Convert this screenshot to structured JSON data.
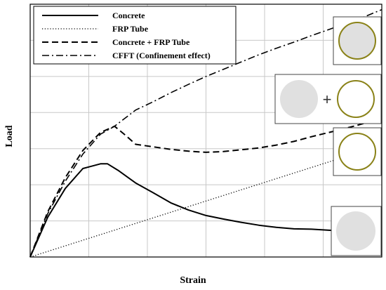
{
  "chart_data": {
    "type": "line",
    "title": "",
    "xlabel": "Strain",
    "ylabel": "Load",
    "xlim": [
      0,
      10
    ],
    "ylim": [
      0,
      7
    ],
    "grid": true,
    "legend_position": "top-left",
    "series": [
      {
        "name": "Concrete",
        "style": "solid",
        "x": [
          0,
          0.5,
          1.0,
          1.5,
          2.0,
          2.2,
          2.5,
          3.0,
          3.5,
          4.0,
          4.5,
          5.0,
          5.5,
          6.0,
          6.5,
          7.0,
          7.5,
          8.0,
          8.5,
          9.0,
          9.5,
          10.0
        ],
        "y": [
          0,
          1.1,
          1.9,
          2.45,
          2.58,
          2.58,
          2.4,
          2.05,
          1.78,
          1.5,
          1.3,
          1.15,
          1.05,
          0.96,
          0.88,
          0.82,
          0.78,
          0.77,
          0.74,
          0.72,
          0.7,
          0.7
        ]
      },
      {
        "name": "FRP Tube",
        "style": "dotted",
        "x": [
          0,
          10
        ],
        "y": [
          0,
          3.1
        ]
      },
      {
        "name": "Concrete + FRP Tube",
        "style": "dashed",
        "x": [
          0,
          0.5,
          1.0,
          1.5,
          2.0,
          2.4,
          2.7,
          3.0,
          3.5,
          4.0,
          4.5,
          5.0,
          5.5,
          6.0,
          6.5,
          7.0,
          7.5,
          8.0,
          8.5,
          9.0,
          9.5,
          10.0
        ],
        "y": [
          0,
          1.25,
          2.2,
          2.95,
          3.45,
          3.62,
          3.38,
          3.12,
          3.05,
          2.98,
          2.93,
          2.9,
          2.92,
          2.97,
          3.02,
          3.1,
          3.2,
          3.33,
          3.45,
          3.57,
          3.7,
          3.85
        ]
      },
      {
        "name": "CFFT (Confinement effect)",
        "style": "dashdot",
        "x": [
          0,
          0.5,
          1.0,
          1.5,
          2.0,
          2.4,
          3.0,
          3.5,
          4.0,
          4.5,
          5.0,
          5.5,
          6.0,
          6.5,
          7.0,
          7.5,
          8.0,
          8.5,
          9.0,
          9.5,
          10.0
        ],
        "y": [
          0,
          1.2,
          2.1,
          2.85,
          3.4,
          3.62,
          4.07,
          4.3,
          4.55,
          4.78,
          5.0,
          5.2,
          5.4,
          5.6,
          5.78,
          5.95,
          6.13,
          6.3,
          6.48,
          6.65,
          6.85
        ]
      }
    ]
  },
  "insets": [
    {
      "name": "cfft-inset",
      "description_icons": [
        "filled-circle",
        "ring"
      ],
      "fill": true,
      "ring": true
    },
    {
      "name": "concrete-plus-frp-inset",
      "plus_symbol": "+",
      "fill": true,
      "ring": true
    },
    {
      "name": "frp-tube-inset",
      "fill": false,
      "ring": true
    },
    {
      "name": "concrete-inset",
      "fill": true,
      "ring": false
    }
  ],
  "colors": {
    "ring": "#8a8218",
    "concrete_fill": "#e0e0e0",
    "grid": "#c8c8c8",
    "frame": "#000000"
  }
}
